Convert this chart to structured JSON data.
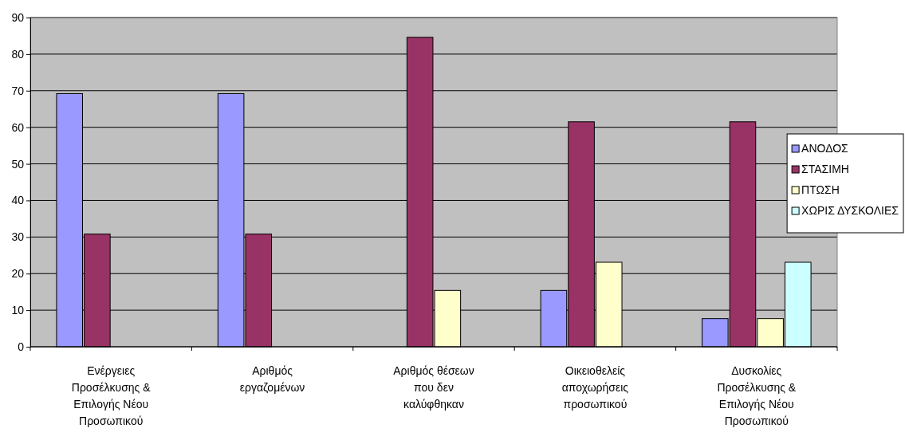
{
  "chart_data": {
    "type": "bar",
    "categories": [
      "Ενέργειες Προσέλκυσης & Επιλογής Νέου Προσωπικού",
      "Αριθμός εργαζομένων",
      "Αριθμός θέσεων που δεν καλύφθηκαν",
      "Οικειοθελείς αποχωρήσεις προσωπικού",
      "Δυσκολίες Προσέλκυσης & Επιλογής Νέου Προσωπικού"
    ],
    "series": [
      {
        "name": "ΑΝΟΔΟΣ",
        "color": "#9999ff",
        "values": [
          69.2,
          69.2,
          null,
          15.4,
          7.7
        ]
      },
      {
        "name": "ΣΤΑΣΙΜΗ",
        "color": "#993366",
        "values": [
          30.8,
          30.8,
          84.6,
          61.5,
          61.5
        ]
      },
      {
        "name": "ΠΤΩΣΗ",
        "color": "#ffffcc",
        "values": [
          null,
          null,
          15.4,
          23.1,
          7.7
        ]
      },
      {
        "name": "ΧΩΡΙΣ ΔΥΣΚΟΛΙΕΣ",
        "color": "#ccffff",
        "values": [
          null,
          null,
          null,
          null,
          23.1
        ]
      }
    ],
    "ylim": [
      0,
      90
    ],
    "yticks": [
      0,
      10,
      20,
      30,
      40,
      50,
      60,
      70,
      80,
      90
    ],
    "grid": "y",
    "legend": "right"
  }
}
